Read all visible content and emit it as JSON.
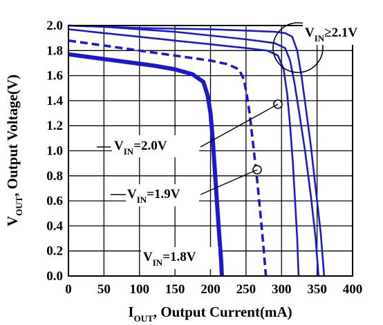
{
  "chart_data": {
    "type": "line",
    "xlabel": {
      "main": "I",
      "sub": "OUT",
      "rest": ", Output Current(mA)"
    },
    "ylabel": {
      "main": "V",
      "sub": "OUT",
      "rest": ", Output Voltage(V)"
    },
    "xlim": [
      0,
      400
    ],
    "ylim": [
      0,
      2.0
    ],
    "x_ticks": [
      0,
      50,
      100,
      150,
      200,
      250,
      300,
      350,
      400
    ],
    "y_ticks": [
      "0.0",
      "0.2",
      "0.4",
      "0.6",
      "0.8",
      "1.0",
      "1.2",
      "1.4",
      "1.6",
      "1.8",
      "2.0"
    ],
    "grid": true,
    "line_color": "#1a1acc",
    "series": [
      {
        "name": "V_IN=1.8V",
        "style": "thick",
        "points": [
          [
            0,
            1.77
          ],
          [
            40,
            1.74
          ],
          [
            80,
            1.71
          ],
          [
            120,
            1.68
          ],
          [
            150,
            1.65
          ],
          [
            175,
            1.61
          ],
          [
            190,
            1.55
          ],
          [
            196,
            1.44
          ],
          [
            200,
            1.3
          ],
          [
            203,
            1.1
          ],
          [
            206,
            0.85
          ],
          [
            209,
            0.6
          ],
          [
            212,
            0.35
          ],
          [
            215,
            0.12
          ],
          [
            216,
            0.0
          ]
        ]
      },
      {
        "style": "dashed",
        "points": [
          [
            0,
            1.88
          ],
          [
            50,
            1.84
          ],
          [
            100,
            1.8
          ],
          [
            150,
            1.76
          ],
          [
            200,
            1.72
          ],
          [
            225,
            1.69
          ],
          [
            240,
            1.65
          ],
          [
            247,
            1.57
          ],
          [
            251,
            1.45
          ],
          [
            255,
            1.3
          ],
          [
            260,
            1.05
          ],
          [
            266,
            0.75
          ],
          [
            271,
            0.45
          ],
          [
            275,
            0.2
          ],
          [
            278,
            0.0
          ]
        ]
      },
      {
        "style": "solid",
        "points": [
          [
            0,
            1.97
          ],
          [
            50,
            1.94
          ],
          [
            100,
            1.91
          ],
          [
            150,
            1.88
          ],
          [
            200,
            1.85
          ],
          [
            250,
            1.82
          ],
          [
            280,
            1.8
          ],
          [
            295,
            1.76
          ],
          [
            303,
            1.65
          ],
          [
            308,
            1.45
          ],
          [
            312,
            1.2
          ],
          [
            316,
            0.9
          ],
          [
            319,
            0.6
          ],
          [
            322,
            0.3
          ],
          [
            324,
            0.0
          ]
        ]
      },
      {
        "style": "solid",
        "points": [
          [
            0,
            2.0
          ],
          [
            50,
            1.99
          ],
          [
            100,
            1.97
          ],
          [
            150,
            1.95
          ],
          [
            200,
            1.92
          ],
          [
            250,
            1.89
          ],
          [
            290,
            1.86
          ],
          [
            305,
            1.82
          ],
          [
            312,
            1.72
          ],
          [
            318,
            1.55
          ],
          [
            325,
            1.3
          ],
          [
            333,
            1.0
          ],
          [
            341,
            0.65
          ],
          [
            348,
            0.3
          ],
          [
            352,
            0.0
          ]
        ]
      },
      {
        "style": "solid",
        "points": [
          [
            0,
            2.0
          ],
          [
            50,
            1.99
          ],
          [
            100,
            1.98
          ],
          [
            150,
            1.975
          ],
          [
            200,
            1.97
          ],
          [
            250,
            1.96
          ],
          [
            290,
            1.95
          ],
          [
            305,
            1.94
          ],
          [
            315,
            1.91
          ],
          [
            322,
            1.8
          ],
          [
            328,
            1.6
          ],
          [
            334,
            1.35
          ],
          [
            341,
            1.05
          ],
          [
            348,
            0.7
          ],
          [
            355,
            0.35
          ],
          [
            360,
            0.0
          ]
        ]
      }
    ],
    "annotations": [
      {
        "main": "V",
        "sub": "IN",
        "rest": "≥2.1V"
      },
      {
        "main": "V",
        "sub": "IN",
        "rest": "=2.0V"
      },
      {
        "main": "V",
        "sub": "IN",
        "rest": "=1.9V"
      },
      {
        "main": "V",
        "sub": "IN",
        "rest": "=1.8V"
      }
    ]
  }
}
